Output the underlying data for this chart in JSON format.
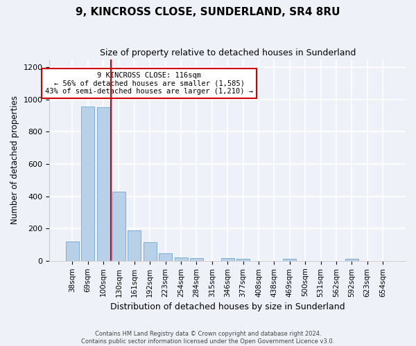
{
  "title": "9, KINCROSS CLOSE, SUNDERLAND, SR4 8RU",
  "subtitle": "Size of property relative to detached houses in Sunderland",
  "xlabel": "Distribution of detached houses by size in Sunderland",
  "ylabel": "Number of detached properties",
  "categories": [
    "38sqm",
    "69sqm",
    "100sqm",
    "130sqm",
    "161sqm",
    "192sqm",
    "223sqm",
    "254sqm",
    "284sqm",
    "315sqm",
    "346sqm",
    "377sqm",
    "408sqm",
    "438sqm",
    "469sqm",
    "500sqm",
    "531sqm",
    "562sqm",
    "592sqm",
    "623sqm",
    "654sqm"
  ],
  "values": [
    120,
    955,
    950,
    430,
    190,
    115,
    45,
    22,
    18,
    0,
    15,
    13,
    0,
    0,
    10,
    0,
    0,
    0,
    10,
    0,
    0
  ],
  "bar_color": "#b8d0e8",
  "bar_edge_color": "#7aaed4",
  "annotation_line1": "9 KINCROSS CLOSE: 116sqm",
  "annotation_line2": "← 56% of detached houses are smaller (1,585)",
  "annotation_line3": "43% of semi-detached houses are larger (1,210) →",
  "annotation_box_color": "#ffffff",
  "annotation_box_edge": "#cc0000",
  "vline_color": "#cc0000",
  "ylim": [
    0,
    1250
  ],
  "yticks": [
    0,
    200,
    400,
    600,
    800,
    1000,
    1200
  ],
  "footer1": "Contains HM Land Registry data © Crown copyright and database right 2024.",
  "footer2": "Contains public sector information licensed under the Open Government Licence v3.0.",
  "bg_color": "#eef2f8",
  "plot_bg_color": "#eef2f8"
}
